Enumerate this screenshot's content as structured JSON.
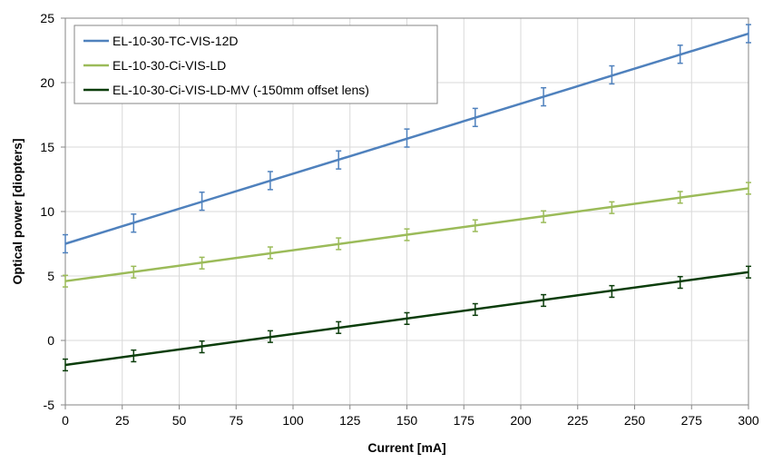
{
  "chart_data": {
    "type": "line",
    "title": "",
    "xlabel": "Current [mA]",
    "ylabel": "Optical power [diopters]",
    "xlim": [
      0,
      300
    ],
    "ylim": [
      -5,
      25
    ],
    "xticks": [
      0,
      25,
      50,
      75,
      100,
      125,
      150,
      175,
      200,
      225,
      250,
      275,
      300
    ],
    "yticks": [
      -5,
      0,
      5,
      10,
      15,
      20,
      25
    ],
    "grid": true,
    "legend_position": "top-left",
    "x": [
      0,
      30,
      60,
      90,
      120,
      150,
      180,
      210,
      240,
      270,
      300
    ],
    "series": [
      {
        "name": "EL-10-30-TC-VIS-12D",
        "color": "#4f81bd",
        "values": [
          7.5,
          9.1,
          10.8,
          12.4,
          14.0,
          15.7,
          17.3,
          18.9,
          20.6,
          22.2,
          23.8
        ],
        "error": 0.7,
        "fit": [
          7.5,
          23.8
        ]
      },
      {
        "name": "EL-10-30-Ci-VIS-LD",
        "color": "#9bbb59",
        "values": [
          4.6,
          5.3,
          6.0,
          6.8,
          7.5,
          8.2,
          8.9,
          9.6,
          10.3,
          11.1,
          11.8
        ],
        "error": 0.45,
        "fit": [
          4.6,
          11.8
        ]
      },
      {
        "name": "EL-10-30-Ci-VIS-LD-MV (-150mm offset lens)",
        "color": "#0b3d0b",
        "values": [
          -1.9,
          -1.2,
          -0.5,
          0.3,
          1.0,
          1.7,
          2.4,
          3.1,
          3.8,
          4.5,
          5.3
        ],
        "error": 0.45,
        "fit": [
          -1.9,
          5.3
        ]
      }
    ]
  }
}
